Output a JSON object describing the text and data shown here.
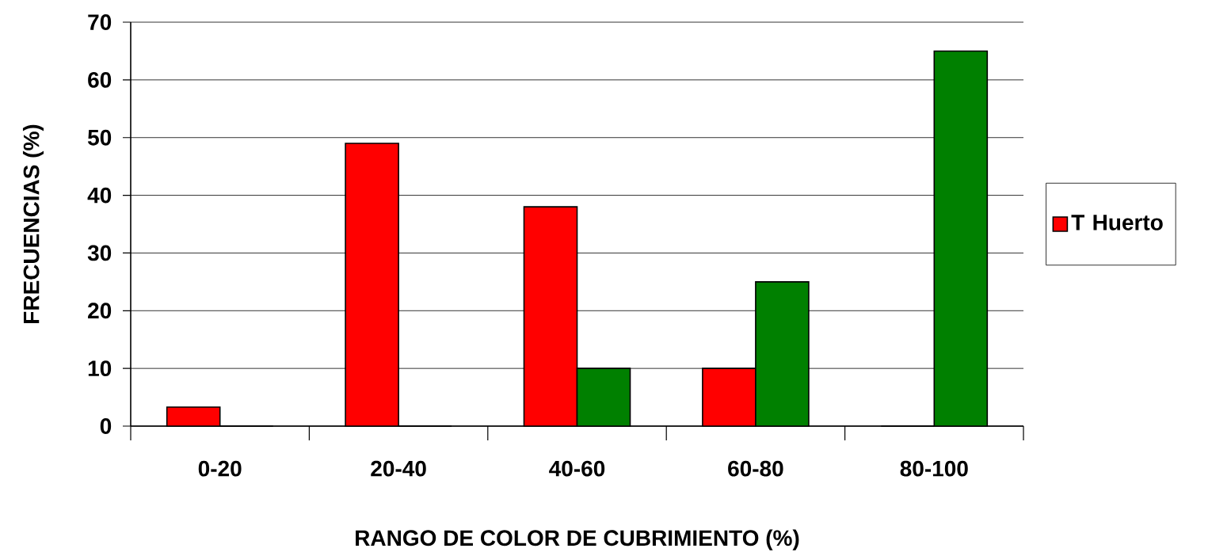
{
  "chart_data": {
    "type": "bar",
    "xlabel": "RANGO DE COLOR DE CUBRIMIENTO (%)",
    "ylabel": "FRECUENCIAS (%)",
    "categories": [
      "0-20",
      "20-40",
      "40-60",
      "60-80",
      "80-100"
    ],
    "series": [
      {
        "name": "T Huerto",
        "color": "#ff0000",
        "values": [
          3.3,
          49,
          38,
          10,
          0
        ]
      },
      {
        "color": "#008000",
        "values": [
          0,
          0,
          10,
          25,
          65
        ]
      }
    ],
    "ylim": [
      0,
      70
    ],
    "yticks": [
      0,
      10,
      20,
      30,
      40,
      50,
      60,
      70
    ],
    "grid": "y",
    "legend": "right"
  }
}
